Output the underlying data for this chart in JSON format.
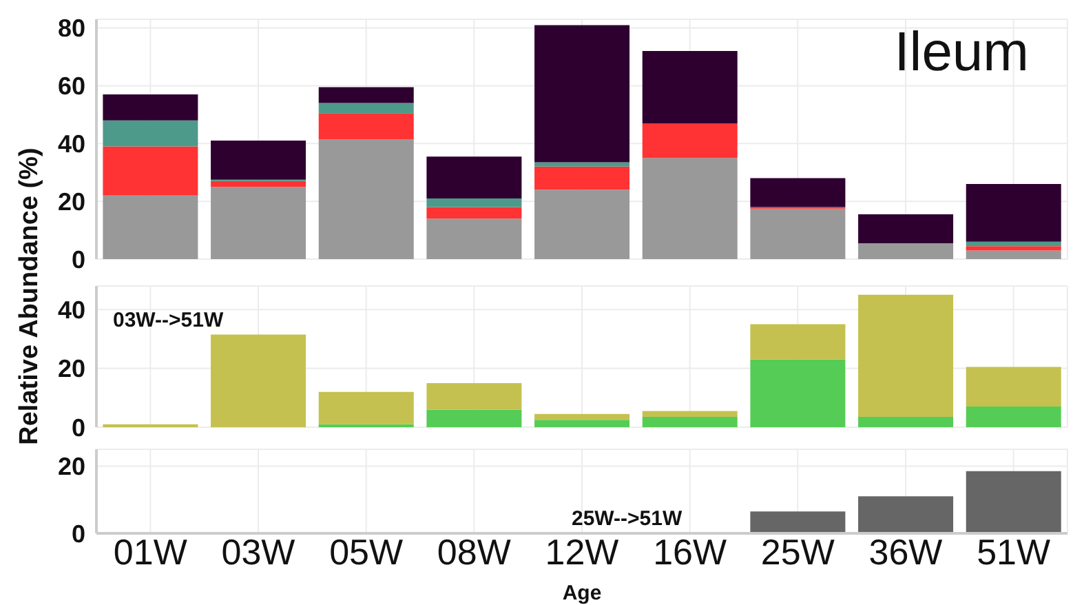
{
  "chart_data": [
    {
      "type": "bar",
      "title": "Ileum",
      "stacked": true,
      "grid": true,
      "tick_labels": "y",
      "ylim": [
        0,
        83
      ],
      "yticks": [
        0,
        20,
        40,
        60,
        80
      ],
      "series": [
        {
          "color": "#999999",
          "values": [
            22,
            25,
            41.5,
            14,
            24,
            35,
            17.5,
            5.5,
            3
          ]
        },
        {
          "color": "#ff3333",
          "values": [
            17,
            2,
            9,
            4,
            8,
            12,
            0.5,
            0,
            1.5
          ]
        },
        {
          "color": "#4e9a8a",
          "values": [
            9,
            0.5,
            3.5,
            3,
            1.5,
            0,
            0,
            0,
            1.5
          ]
        },
        {
          "color": "#2e0030",
          "values": [
            9,
            13.5,
            5.5,
            14.5,
            47.5,
            25,
            10,
            10,
            20
          ]
        }
      ]
    },
    {
      "type": "bar",
      "ylabel": "Relative Abundance (%)",
      "stacked": true,
      "grid": true,
      "tick_labels": "y",
      "annotations": [
        "03W-->51W"
      ],
      "ylim": [
        0,
        48
      ],
      "yticks": [
        0,
        20,
        40
      ],
      "series": [
        {
          "color": "#55cc55",
          "values": [
            0,
            0,
            1,
            6,
            2.5,
            3.5,
            23,
            3.5,
            7
          ]
        },
        {
          "color": "#c4c150",
          "values": [
            1,
            31.5,
            11,
            9,
            2,
            2,
            12,
            41.5,
            13.5
          ]
        }
      ]
    },
    {
      "type": "bar",
      "xlabel": "Age",
      "grid": true,
      "annotations": [
        "25W-->51W"
      ],
      "categories": [
        "01W",
        "03W",
        "05W",
        "08W",
        "12W",
        "16W",
        "25W",
        "36W",
        "51W"
      ],
      "ylim": [
        0,
        25
      ],
      "yticks": [
        0,
        20
      ],
      "series": [
        {
          "color": "#666666",
          "values": [
            null,
            null,
            null,
            null,
            null,
            null,
            6.5,
            11,
            18.5
          ]
        }
      ]
    }
  ]
}
